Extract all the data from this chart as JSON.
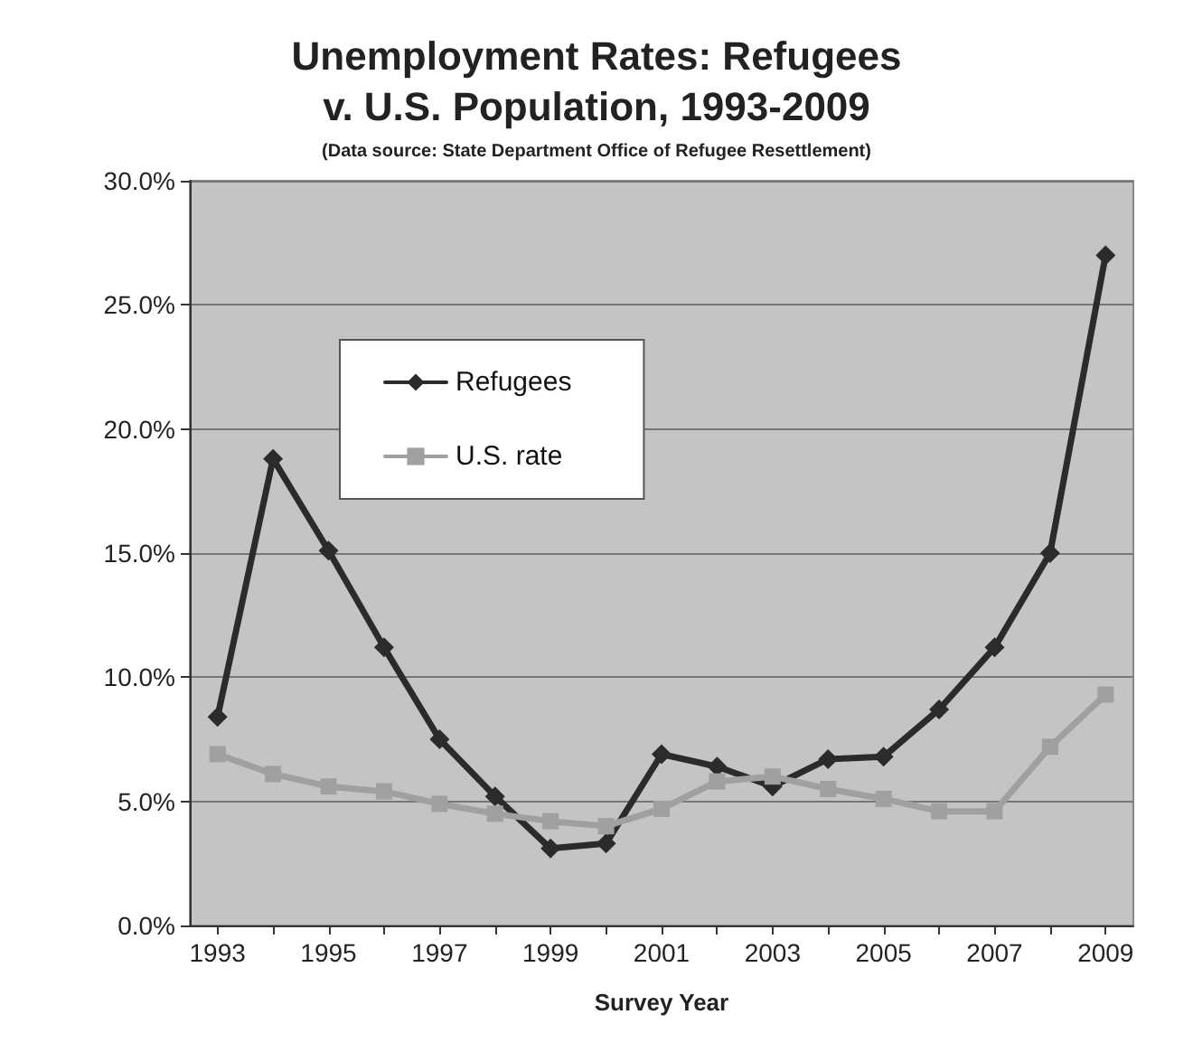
{
  "chart_data": {
    "type": "line",
    "title": "Unemployment Rates: Refugees\nv. U.S. Population, 1993-2009",
    "subtitle": "(Data source: State Department Office of Refugee Resettlement)",
    "xlabel": "Survey Year",
    "categories": [
      "1993",
      null,
      "1995",
      null,
      "1997",
      null,
      "1999",
      null,
      "2001",
      null,
      "2003",
      null,
      "2005",
      null,
      "2007",
      null,
      "2009"
    ],
    "series": [
      {
        "name": "Refugees",
        "color": "#2b2b2b",
        "marker": "diamond",
        "values": [
          8.4,
          18.8,
          15.1,
          11.2,
          7.5,
          5.2,
          3.1,
          3.3,
          6.9,
          6.4,
          5.6,
          6.7,
          6.8,
          8.7,
          11.2,
          15.0,
          27.0
        ]
      },
      {
        "name": "U.S. rate",
        "color": "#a0a0a0",
        "marker": "square",
        "values": [
          6.9,
          6.1,
          5.6,
          5.4,
          4.9,
          4.5,
          4.2,
          4.0,
          4.7,
          5.8,
          6.0,
          5.5,
          5.1,
          4.6,
          4.6,
          7.2,
          9.3
        ]
      }
    ],
    "ylim": [
      0,
      30
    ],
    "yticks": [
      {
        "value": 0,
        "label": "0.0%"
      },
      {
        "value": 5,
        "label": "5.0%"
      },
      {
        "value": 10,
        "label": "10.0%"
      },
      {
        "value": 15,
        "label": "15.0%"
      },
      {
        "value": 20,
        "label": "20.0%"
      },
      {
        "value": 25,
        "label": "25.0%"
      },
      {
        "value": 30,
        "label": "30.0%"
      }
    ],
    "grid": "y",
    "legend": "top left",
    "line_style": "solid"
  }
}
